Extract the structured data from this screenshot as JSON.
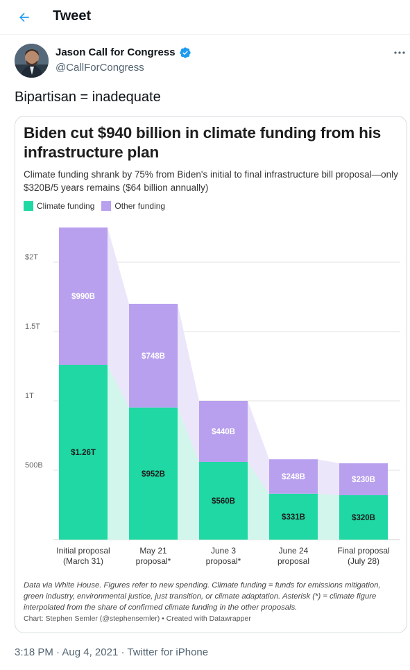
{
  "header": {
    "back_icon": "arrow-left-icon",
    "title": "Tweet"
  },
  "author": {
    "name": "Jason Call for Congress",
    "handle": "@CallForCongress",
    "verified_icon": "verified-badge-icon",
    "more_icon": "more-horizontal-icon"
  },
  "tweet": {
    "text": "Bipartisan = inadequate",
    "time": "3:18 PM",
    "separator": "·",
    "date": "Aug 4, 2021",
    "source": "Twitter for iPhone"
  },
  "colors": {
    "accent": "#1d9bf0",
    "climate": "#1fd8a4",
    "other": "#b8a0ef",
    "climate_shade": "#d2f6ec",
    "other_shade": "#ece6fb"
  },
  "chart_data": {
    "type": "bar",
    "stacked": true,
    "title": "Biden cut $940 billion in climate funding from his infrastructure plan",
    "subtitle": "Climate funding shrank by 75% from Biden's initial to final infrastructure bill proposal—only $320B/5 years remains ($64 billion annually)",
    "categories": [
      [
        "Initial proposal",
        "(March 31)"
      ],
      [
        "May 21",
        "proposal*"
      ],
      [
        "June 3",
        "proposal*"
      ],
      [
        "June 24",
        "proposal"
      ],
      [
        "Final proposal",
        "(July 28)"
      ]
    ],
    "series": [
      {
        "name": "Climate funding",
        "values": [
          1260,
          952,
          560,
          331,
          320
        ],
        "labels": [
          "$1.26T",
          "$952B",
          "$560B",
          "$331B",
          "$320B"
        ]
      },
      {
        "name": "Other funding",
        "values": [
          990,
          748,
          440,
          248,
          230
        ],
        "labels": [
          "$990B",
          "$748B",
          "$440B",
          "$248B",
          "$230B"
        ]
      }
    ],
    "y_ticks": [
      {
        "value": 500,
        "label": "500B"
      },
      {
        "value": 1000,
        "label": "1T"
      },
      {
        "value": 1500,
        "label": "1.5T"
      },
      {
        "value": 2000,
        "label": "$2T"
      }
    ],
    "ylim": [
      0,
      2250
    ],
    "grid": true,
    "legend_position": "top-left",
    "note": "Data via White House. Figures refer to new spending. Climate funding = funds for emissions mitigation, green industry, environmental justice, just transition, or climate adaptation. Asterisk (*) = climate figure interpolated from the share of confirmed climate funding in the other proposals.",
    "credit": "Chart: Stephen Semler (@stephensemler) • Created with Datawrapper"
  }
}
